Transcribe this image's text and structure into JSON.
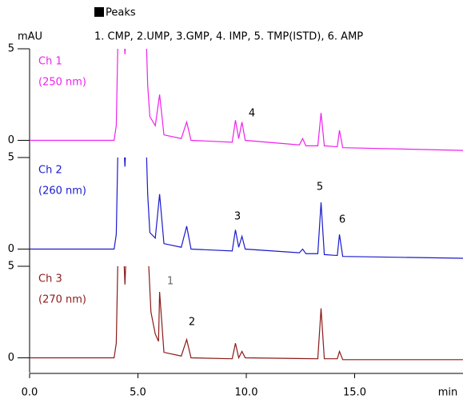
{
  "chart_data": [
    {
      "type": "line",
      "legend_title": "Peaks",
      "note": "1. CMP, 2.UMP, 3.GMP, 4. IMP, 5. TMP(ISTD), 6. AMP",
      "ylabel": "mAU",
      "subtitle": "(250 nm)",
      "xlim": [
        0,
        20
      ],
      "ylim": [
        -0.85,
        5
      ],
      "yticks": [
        0,
        5
      ],
      "x": [
        0,
        3.9,
        4.0,
        4.1,
        4.3,
        4.4,
        4.5,
        5.35,
        5.45,
        5.55,
        5.8,
        6.0,
        6.2,
        7.0,
        7.25,
        7.45,
        9.35,
        9.5,
        9.65,
        9.8,
        9.95,
        12.45,
        12.6,
        12.75,
        13.3,
        13.45,
        13.6,
        14.2,
        14.3,
        14.45,
        20
      ],
      "series": [
        {
          "name": "Ch 1",
          "color": "#ee22ee",
          "values": [
            0,
            0,
            0.8,
            7,
            7,
            4.7,
            7,
            7,
            3,
            1.3,
            0.8,
            2.5,
            0.3,
            0.1,
            1.0,
            0,
            -0.1,
            1.1,
            0.1,
            1.0,
            0,
            -0.25,
            0.1,
            -0.3,
            -0.3,
            1.5,
            -0.3,
            -0.35,
            0.55,
            -0.4,
            -0.55
          ]
        }
      ],
      "annotations": [
        "4"
      ]
    },
    {
      "type": "line",
      "subtitle": "(260 nm)",
      "xlim": [
        0,
        20
      ],
      "ylim": [
        -0.85,
        5
      ],
      "yticks": [
        0,
        5
      ],
      "x": [
        0,
        3.9,
        4.0,
        4.1,
        4.3,
        4.4,
        4.5,
        5.35,
        5.45,
        5.55,
        5.8,
        6.0,
        6.2,
        7.0,
        7.25,
        7.45,
        9.35,
        9.5,
        9.65,
        9.8,
        9.95,
        12.45,
        12.6,
        12.75,
        13.3,
        13.45,
        13.6,
        14.2,
        14.3,
        14.45,
        20
      ],
      "series": [
        {
          "name": "Ch 2",
          "color": "#1a1acc",
          "values": [
            0,
            0,
            0.8,
            7,
            7,
            4.5,
            7,
            7,
            3,
            0.9,
            0.6,
            3.0,
            0.3,
            0.1,
            1.25,
            0,
            -0.1,
            1.05,
            0.1,
            0.7,
            0,
            -0.2,
            0,
            -0.25,
            -0.25,
            2.55,
            -0.3,
            -0.35,
            0.8,
            -0.4,
            -0.5
          ]
        }
      ],
      "annotations": [
        "3",
        "5",
        "6"
      ]
    },
    {
      "type": "line",
      "subtitle": "(270 nm)",
      "xlim": [
        0,
        20
      ],
      "ylim": [
        -0.85,
        5
      ],
      "yticks": [
        0,
        5
      ],
      "xticks": [
        {
          "value": 0,
          "label": "0.0"
        },
        {
          "value": 5,
          "label": "5.0"
        },
        {
          "value": 10,
          "label": "10.0"
        },
        {
          "value": 15,
          "label": "15.0"
        }
      ],
      "xlabel": "min",
      "x": [
        0,
        3.9,
        4.0,
        4.1,
        4.3,
        4.4,
        4.5,
        5.4,
        5.5,
        5.6,
        5.8,
        5.95,
        6.0,
        6.2,
        7.0,
        7.25,
        7.45,
        9.35,
        9.5,
        9.65,
        9.8,
        9.95,
        13.3,
        13.45,
        13.6,
        14.2,
        14.3,
        14.45,
        20
      ],
      "series": [
        {
          "name": "Ch 3",
          "color": "#8b1a1a",
          "values": [
            0,
            0,
            0.8,
            7,
            7,
            4.0,
            7,
            7,
            5,
            2.5,
            1.3,
            0.9,
            3.6,
            0.3,
            0.1,
            1.0,
            0,
            -0.05,
            0.8,
            0,
            0.35,
            0,
            -0.05,
            2.7,
            -0.05,
            -0.05,
            0.35,
            -0.1,
            -0.1
          ]
        }
      ],
      "annotations": [
        "1",
        "2"
      ]
    }
  ]
}
